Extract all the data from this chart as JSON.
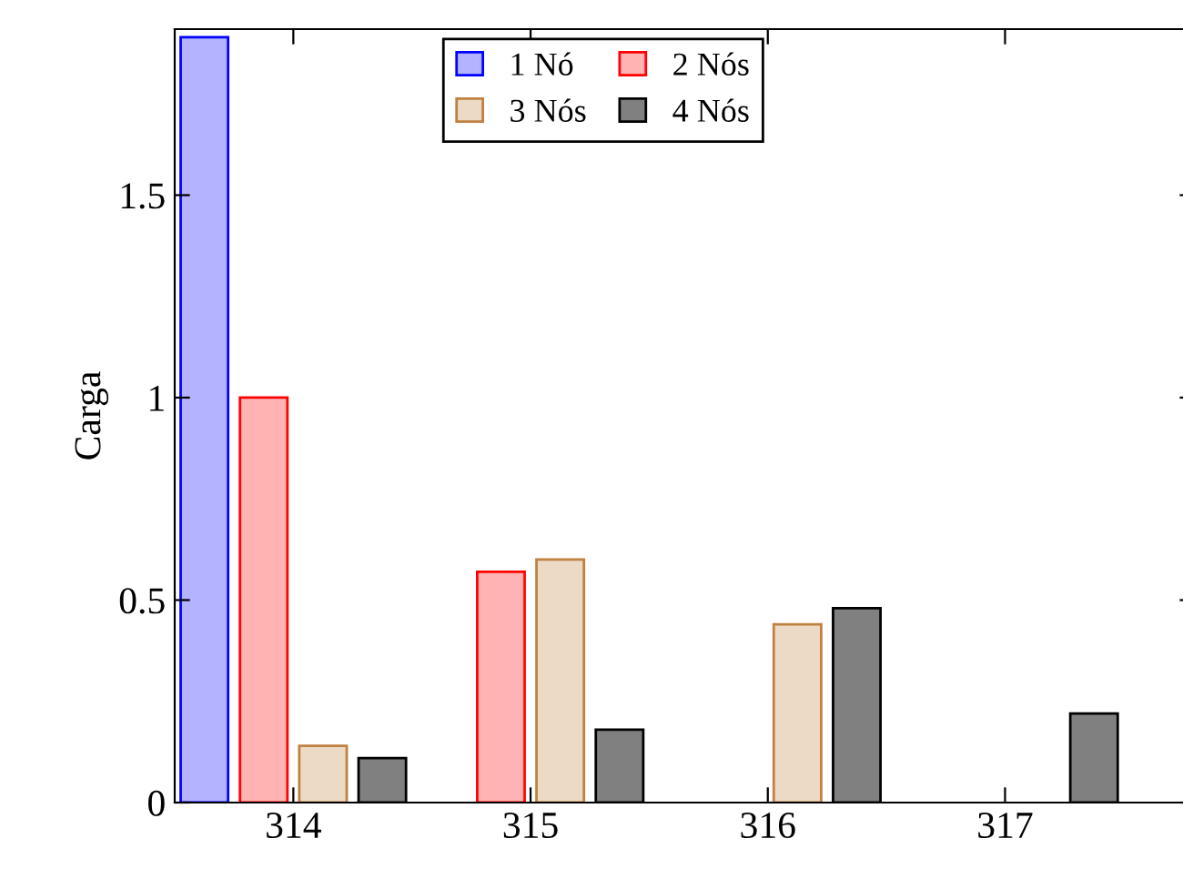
{
  "chart_data": {
    "type": "bar",
    "ylabel": "Carga",
    "x": [
      314,
      315,
      316,
      317
    ],
    "xlim": [
      313.5,
      317.8
    ],
    "xticks": [
      314,
      315,
      316,
      317
    ],
    "ylim": [
      0,
      1.91
    ],
    "yticks": [
      0,
      0.5,
      1,
      1.5
    ],
    "grid": false,
    "legend": "top",
    "series": [
      {
        "name": "1 Nó",
        "color": "#b3b3ff",
        "values": [
          1.89,
          0,
          0,
          0
        ]
      },
      {
        "name": "2 Nós",
        "color": "#ffb3b3",
        "values": [
          1.0,
          0.57,
          0,
          0
        ]
      },
      {
        "name": "3 Nós",
        "color": "#ecd9c6",
        "values": [
          0.14,
          0.6,
          0.44,
          0
        ]
      },
      {
        "name": "4 Nós",
        "color": "#808080",
        "values": [
          0.11,
          0.18,
          0.48,
          0.22
        ]
      }
    ]
  }
}
